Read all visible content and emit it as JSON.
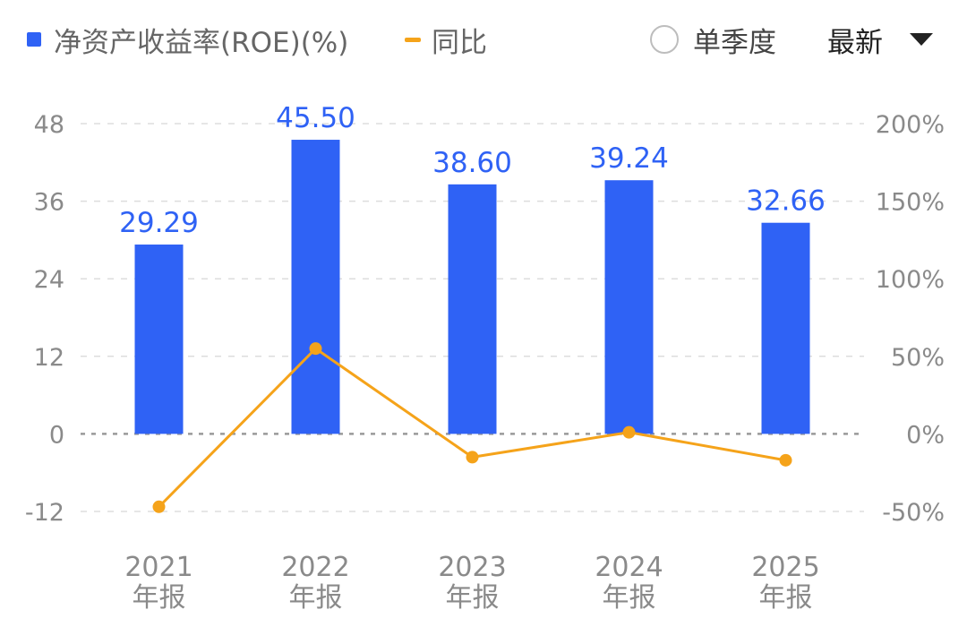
{
  "legend": {
    "series_roe": "净资产收益率(ROE)(%)",
    "series_yoy": "同比"
  },
  "controls": {
    "single_quarter_label": "单季度",
    "period_selected": "最新"
  },
  "colors": {
    "bar": "#2f62f5",
    "line": "#f5a31a",
    "grid": "#dddddd",
    "zero_line": "#999999",
    "axis_text": "#8a8a8a"
  },
  "chart_data": {
    "type": "bar",
    "title": "",
    "categories": [
      "2021\n年报",
      "2022\n年报",
      "2023\n年报",
      "2024\n年报",
      "2025\n年报"
    ],
    "series": [
      {
        "name": "净资产收益率(ROE)(%)",
        "type": "bar",
        "axis": "left",
        "values": [
          29.29,
          45.5,
          38.6,
          39.24,
          32.66
        ],
        "value_labels": [
          "29.29",
          "45.50",
          "38.60",
          "39.24",
          "32.66"
        ]
      },
      {
        "name": "同比",
        "type": "line",
        "axis": "right",
        "values": [
          -47,
          55,
          -15,
          1,
          -17
        ]
      }
    ],
    "y_left": {
      "ticks": [
        48,
        36,
        24,
        12,
        0,
        -12
      ],
      "tick_labels": [
        "48",
        "36",
        "24",
        "12",
        "0",
        "-12"
      ],
      "range": [
        -12,
        48
      ]
    },
    "y_right": {
      "ticks": [
        200,
        150,
        100,
        50,
        0,
        -50
      ],
      "tick_labels": [
        "200%",
        "150%",
        "100%",
        "50%",
        "0%",
        "-50%"
      ],
      "range": [
        -50,
        200
      ]
    },
    "grid": true,
    "legend_position": "top-left"
  }
}
